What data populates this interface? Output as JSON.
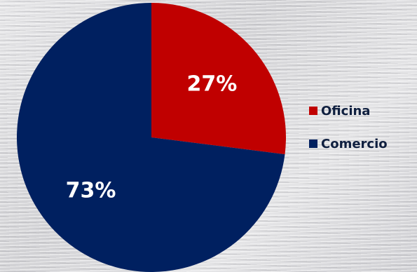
{
  "chart_data": {
    "type": "pie",
    "slices": [
      {
        "label": "Oficina",
        "value": 27,
        "display": "27%",
        "color": "#c00000"
      },
      {
        "label": "Comercio",
        "value": 73,
        "display": "73%",
        "color": "#002060"
      }
    ],
    "legend": {
      "placement": "right",
      "items": [
        "Oficina",
        "Comercio"
      ]
    },
    "start_angle_deg": 0,
    "direction": "clockwise"
  }
}
